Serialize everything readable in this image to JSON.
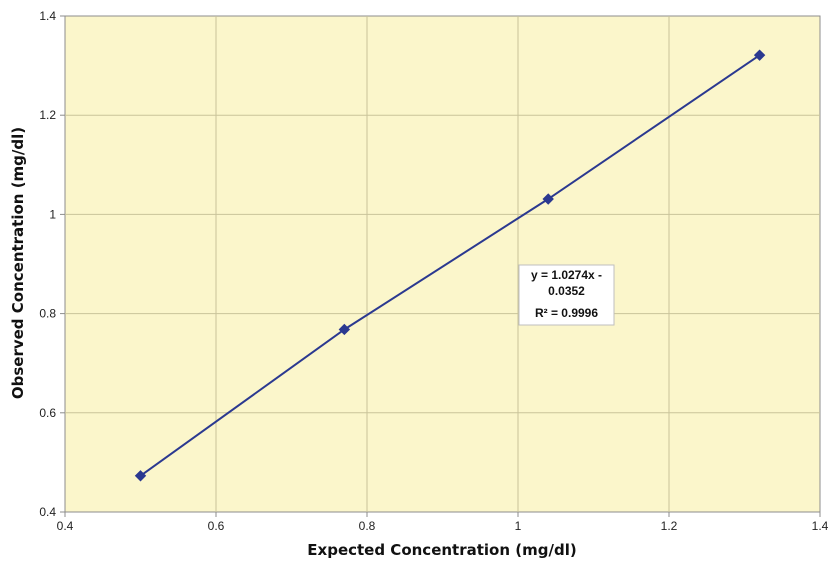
{
  "chart_data": {
    "type": "scatter",
    "title": "",
    "xlabel": "Expected Concentration (mg/dl)",
    "ylabel": "Observed Concentration (mg/dl)",
    "xlim": [
      0.4,
      1.4
    ],
    "ylim": [
      0.4,
      1.4
    ],
    "x_ticks": [
      "0.4",
      "0.6",
      "0.8",
      "1",
      "1.2",
      "1.4"
    ],
    "y_ticks": [
      "0.4",
      "0.6",
      "0.8",
      "1",
      "1.2",
      "1.4"
    ],
    "grid": true,
    "legend": "none",
    "plot_background": "#FBF6CB",
    "series_color": "#2B3990",
    "series": [
      {
        "marker": "diamond",
        "x": [
          0.5,
          0.77,
          1.04,
          1.32
        ],
        "y": [
          0.473,
          0.768,
          1.031,
          1.321
        ]
      }
    ],
    "trendline": {
      "slope": 1.0274,
      "intercept": -0.0352,
      "equation_line1": "y = 1.0274x -",
      "equation_line2": "0.0352",
      "r2_label": "R² = 0.9996"
    }
  }
}
